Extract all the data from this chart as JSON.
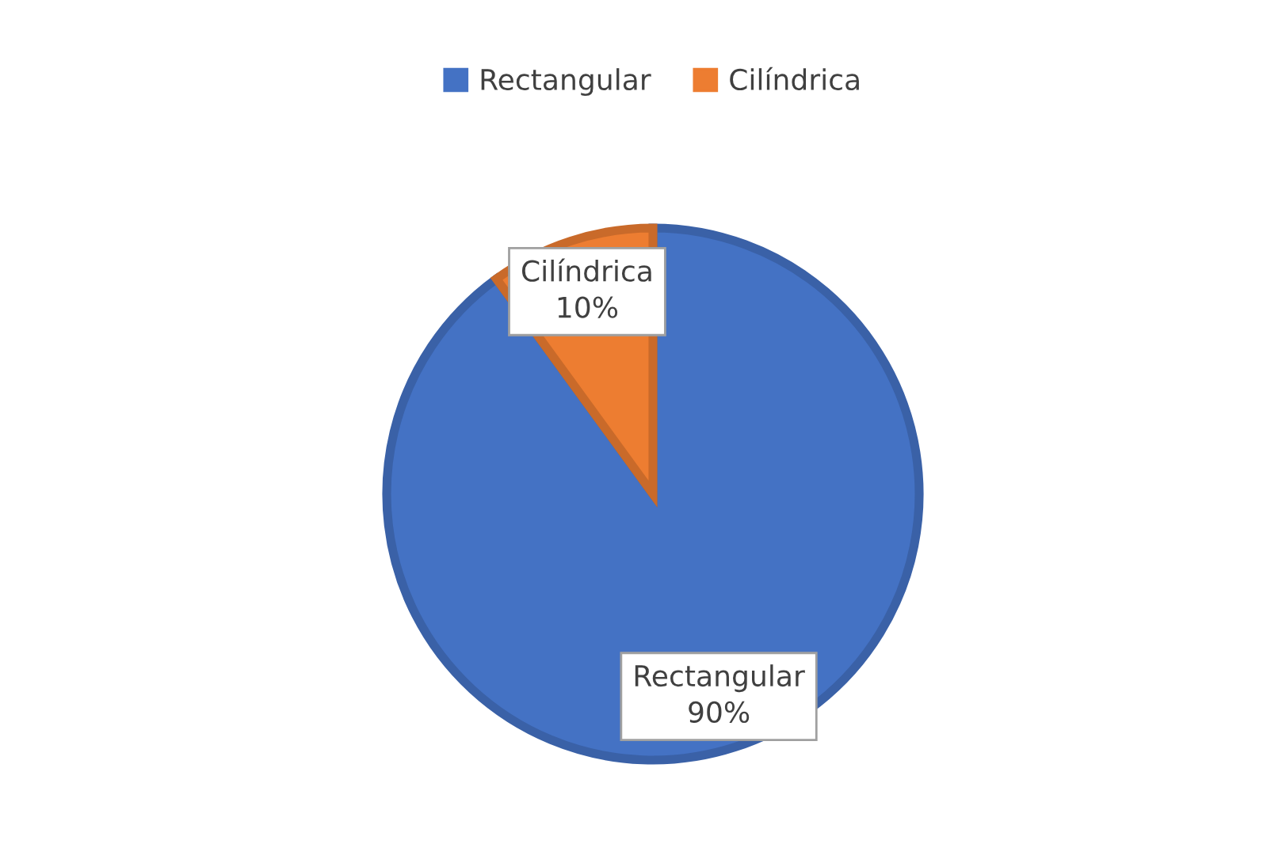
{
  "chart_data": {
    "type": "pie",
    "categories": [
      "Rectangular",
      "Cilíndrica"
    ],
    "values": [
      90,
      10
    ],
    "colors": [
      "#4472c4",
      "#ed7d31"
    ],
    "value_labels": [
      "90%",
      "10%"
    ],
    "legend": "top"
  }
}
